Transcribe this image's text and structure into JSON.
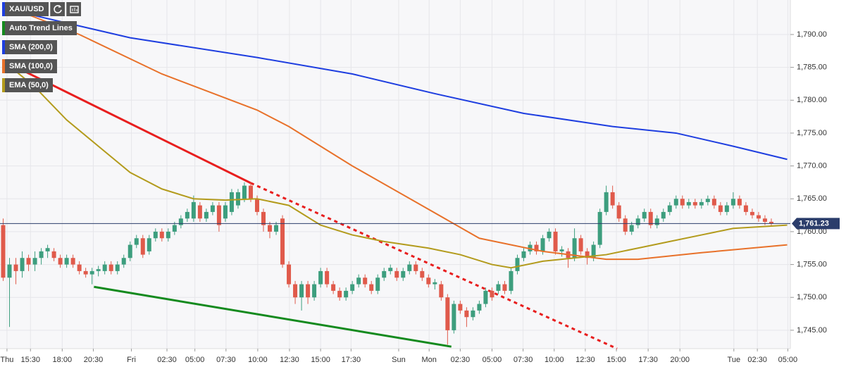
{
  "chart_data": {
    "type": "candlestick",
    "symbol": "XAU/USD",
    "ylim": [
      1742.2,
      1795.25
    ],
    "xlim": [
      -0.5,
      124
    ],
    "yticks": [
      {
        "value": 1745,
        "label": "1,745.00"
      },
      {
        "value": 1750,
        "label": "1,750.00"
      },
      {
        "value": 1755,
        "label": "1,755.00"
      },
      {
        "value": 1760,
        "label": "1,760.00"
      },
      {
        "value": 1765,
        "label": "1,765.00"
      },
      {
        "value": 1770,
        "label": "1,770.00"
      },
      {
        "value": 1775,
        "label": "1,775.00"
      },
      {
        "value": 1780,
        "label": "1,780.00"
      },
      {
        "value": 1785,
        "label": "1,785.00"
      },
      {
        "value": 1790,
        "label": "1,790.00"
      }
    ],
    "xticks": [
      {
        "value": 0.6,
        "label": "Thu"
      },
      {
        "value": 4.3,
        "label": "15:30"
      },
      {
        "value": 9.3,
        "label": "18:00"
      },
      {
        "value": 14.2,
        "label": "20:30"
      },
      {
        "value": 20.2,
        "label": "Fri"
      },
      {
        "value": 25.8,
        "label": "02:30"
      },
      {
        "value": 30.2,
        "label": "05:00"
      },
      {
        "value": 35.1,
        "label": "07:30"
      },
      {
        "value": 40.1,
        "label": "10:00"
      },
      {
        "value": 45.1,
        "label": "12:30"
      },
      {
        "value": 50,
        "label": "15:00"
      },
      {
        "value": 54.8,
        "label": "17:30"
      },
      {
        "value": 62.3,
        "label": "Sun"
      },
      {
        "value": 67.1,
        "label": "Mon"
      },
      {
        "value": 72,
        "label": "02:30"
      },
      {
        "value": 77,
        "label": "05:00"
      },
      {
        "value": 81.9,
        "label": "07:30"
      },
      {
        "value": 86.8,
        "label": "10:00"
      },
      {
        "value": 91.7,
        "label": "12:30"
      },
      {
        "value": 96.6,
        "label": "15:00"
      },
      {
        "value": 101.6,
        "label": "17:30"
      },
      {
        "value": 106.6,
        "label": "20:00"
      },
      {
        "value": 115.1,
        "label": "Tue"
      },
      {
        "value": 118.8,
        "label": "02:30"
      },
      {
        "value": 123.6,
        "label": "05:00"
      }
    ],
    "grid": true,
    "up_color": "#3d9e7e",
    "down_color": "#e05a4b",
    "candles": [
      [
        0,
        1761,
        1762,
        1752.5,
        1753
      ],
      [
        1,
        1753,
        1756,
        1745.5,
        1755
      ],
      [
        2,
        1755,
        1756,
        1752,
        1754
      ],
      [
        3,
        1754,
        1757,
        1753,
        1756
      ],
      [
        4,
        1756,
        1756.5,
        1754,
        1755
      ],
      [
        5,
        1755,
        1757,
        1754,
        1756
      ],
      [
        6,
        1756,
        1757.5,
        1755,
        1757
      ],
      [
        7,
        1757,
        1758,
        1756,
        1757.5
      ],
      [
        8,
        1757,
        1757.5,
        1755.5,
        1756
      ],
      [
        9,
        1756,
        1756.5,
        1754.5,
        1755
      ],
      [
        10,
        1755,
        1756.5,
        1754.5,
        1756
      ],
      [
        11,
        1756,
        1756.5,
        1754.5,
        1755
      ],
      [
        12,
        1755,
        1755.5,
        1753.5,
        1754
      ],
      [
        13,
        1754,
        1754.5,
        1753,
        1753.5
      ],
      [
        14,
        1753.5,
        1754.5,
        1752,
        1754
      ],
      [
        15,
        1754,
        1754.8,
        1753.2,
        1754.3
      ],
      [
        16,
        1754,
        1755.5,
        1753.5,
        1755
      ],
      [
        17,
        1755,
        1755.5,
        1753.5,
        1754
      ],
      [
        18,
        1754,
        1755.5,
        1753.5,
        1755
      ],
      [
        19,
        1755,
        1756.5,
        1754.5,
        1756
      ],
      [
        20,
        1756,
        1758.5,
        1755.5,
        1758
      ],
      [
        21,
        1758,
        1759.5,
        1757.5,
        1759
      ],
      [
        22,
        1759,
        1759.5,
        1756,
        1756.5
      ],
      [
        23,
        1757,
        1759.5,
        1756.5,
        1759
      ],
      [
        24,
        1759,
        1760.5,
        1758.5,
        1760
      ],
      [
        25,
        1760,
        1760.5,
        1758.5,
        1759
      ],
      [
        26,
        1759,
        1760.5,
        1758.5,
        1760
      ],
      [
        27,
        1760,
        1761.5,
        1759.5,
        1761
      ],
      [
        28,
        1761,
        1762.5,
        1760.5,
        1762
      ],
      [
        29,
        1762,
        1763.5,
        1761.5,
        1763
      ],
      [
        30,
        1762,
        1765.5,
        1761.5,
        1764.5
      ],
      [
        31,
        1764,
        1764.5,
        1761.5,
        1762
      ],
      [
        32,
        1762,
        1763.5,
        1761.5,
        1763
      ],
      [
        33,
        1763,
        1764.5,
        1762.5,
        1764
      ],
      [
        34,
        1764,
        1764.5,
        1760,
        1761
      ],
      [
        35,
        1762,
        1764.5,
        1761.5,
        1764
      ],
      [
        36,
        1763,
        1766.5,
        1762.5,
        1766
      ],
      [
        37,
        1764,
        1766.5,
        1763.5,
        1766
      ],
      [
        38,
        1765,
        1767.5,
        1764.5,
        1767
      ],
      [
        39,
        1767,
        1767.5,
        1764.5,
        1765
      ],
      [
        40,
        1765,
        1765.5,
        1762.5,
        1763
      ],
      [
        41,
        1763,
        1763.5,
        1760,
        1761
      ],
      [
        42,
        1761,
        1761.5,
        1759,
        1760
      ],
      [
        43,
        1760,
        1761.5,
        1759.5,
        1761
      ],
      [
        44,
        1762,
        1762.5,
        1754.5,
        1755
      ],
      [
        45,
        1755,
        1755.5,
        1751.5,
        1752
      ],
      [
        46,
        1752,
        1752.5,
        1749,
        1750
      ],
      [
        47,
        1750,
        1752.5,
        1748,
        1752
      ],
      [
        48,
        1752,
        1752.5,
        1749,
        1750
      ],
      [
        49,
        1750,
        1752.5,
        1749.5,
        1752
      ],
      [
        50,
        1752,
        1754.5,
        1751.5,
        1754
      ],
      [
        51,
        1754,
        1754.5,
        1751.5,
        1752
      ],
      [
        52,
        1752,
        1752.5,
        1750.5,
        1751
      ],
      [
        53,
        1751,
        1751.5,
        1749.5,
        1750
      ],
      [
        54,
        1750,
        1751.5,
        1749.5,
        1751
      ],
      [
        55,
        1751,
        1752.5,
        1750.5,
        1752
      ],
      [
        56,
        1752,
        1753.5,
        1751.5,
        1753
      ],
      [
        57,
        1753,
        1753.5,
        1751.5,
        1752
      ],
      [
        58,
        1752,
        1752.5,
        1750.5,
        1751
      ],
      [
        59,
        1751,
        1753.5,
        1750.5,
        1753
      ],
      [
        60,
        1753,
        1754.5,
        1752.5,
        1754
      ],
      [
        61,
        1754,
        1755,
        1753.5,
        1754.5
      ],
      [
        62,
        1754,
        1754.5,
        1752.5,
        1753
      ],
      [
        63,
        1753,
        1754.5,
        1752.5,
        1754
      ],
      [
        64,
        1754,
        1755.5,
        1753.5,
        1755
      ],
      [
        65,
        1755,
        1755.5,
        1753.5,
        1754
      ],
      [
        66,
        1754,
        1754.5,
        1752.5,
        1753
      ],
      [
        67,
        1753,
        1753.5,
        1751.5,
        1752
      ],
      [
        68,
        1752,
        1752.8,
        1751.2,
        1752.3
      ],
      [
        69,
        1752,
        1752.5,
        1749.5,
        1750
      ],
      [
        70,
        1750,
        1750.5,
        1742.8,
        1745
      ],
      [
        71,
        1745,
        1749.5,
        1744.5,
        1749
      ],
      [
        72,
        1749,
        1749.5,
        1747.5,
        1748
      ],
      [
        73,
        1748,
        1748.5,
        1745.5,
        1747
      ],
      [
        74,
        1747,
        1748.5,
        1746.5,
        1748
      ],
      [
        75,
        1748,
        1749.5,
        1747.5,
        1749
      ],
      [
        76,
        1749,
        1751.5,
        1748.5,
        1751
      ],
      [
        77,
        1751,
        1751.5,
        1749.5,
        1750
      ],
      [
        78,
        1751,
        1752.5,
        1750.5,
        1752
      ],
      [
        79,
        1752,
        1752.5,
        1750.5,
        1751
      ],
      [
        80,
        1751,
        1754.5,
        1750.5,
        1754
      ],
      [
        81,
        1754,
        1756.5,
        1753.5,
        1756
      ],
      [
        82,
        1756,
        1757.5,
        1755.5,
        1757
      ],
      [
        83,
        1757,
        1758.5,
        1756.5,
        1758
      ],
      [
        84,
        1758,
        1758.5,
        1756.5,
        1757
      ],
      [
        85,
        1757,
        1759.5,
        1756.5,
        1759
      ],
      [
        86,
        1759,
        1760.5,
        1758.5,
        1760
      ],
      [
        87,
        1760,
        1760.5,
        1756.5,
        1757
      ],
      [
        88,
        1757,
        1757.8,
        1756.2,
        1757.3
      ],
      [
        89,
        1757,
        1757.5,
        1754.5,
        1756
      ],
      [
        90,
        1756,
        1760.5,
        1755.5,
        1759
      ],
      [
        91,
        1759,
        1759.5,
        1756.5,
        1757
      ],
      [
        92,
        1757,
        1757.5,
        1755,
        1756
      ],
      [
        93,
        1756,
        1758.5,
        1755.5,
        1758
      ],
      [
        94,
        1758,
        1763.5,
        1757.5,
        1763
      ],
      [
        95,
        1763,
        1767,
        1762.5,
        1766
      ],
      [
        96,
        1766,
        1767,
        1763.5,
        1764
      ],
      [
        97,
        1764,
        1764.5,
        1761.5,
        1762
      ],
      [
        98,
        1762,
        1762.5,
        1759.5,
        1760
      ],
      [
        99,
        1760,
        1761.5,
        1759.5,
        1761
      ],
      [
        100,
        1761,
        1762.5,
        1760.5,
        1762
      ],
      [
        101,
        1762,
        1763.5,
        1761.5,
        1763
      ],
      [
        102,
        1763,
        1763.5,
        1760.5,
        1761
      ],
      [
        103,
        1761,
        1762.5,
        1760.5,
        1762
      ],
      [
        104,
        1762,
        1763.5,
        1761.5,
        1763
      ],
      [
        105,
        1763,
        1764.5,
        1762.5,
        1764
      ],
      [
        106,
        1764,
        1765.5,
        1763.5,
        1765
      ],
      [
        107,
        1765,
        1765.5,
        1763.5,
        1764
      ],
      [
        108,
        1764,
        1765,
        1763.5,
        1764.5
      ],
      [
        109,
        1764.5,
        1765,
        1763.5,
        1764
      ],
      [
        110,
        1764,
        1765,
        1763.5,
        1764.5
      ],
      [
        111,
        1764.5,
        1765.5,
        1764,
        1765
      ],
      [
        112,
        1765,
        1765.5,
        1763.5,
        1764
      ],
      [
        113,
        1764,
        1764.5,
        1762.5,
        1763
      ],
      [
        114,
        1763,
        1764.5,
        1762.5,
        1764
      ],
      [
        115,
        1764,
        1766,
        1763.5,
        1765
      ],
      [
        116,
        1765,
        1765.5,
        1763.5,
        1764
      ],
      [
        117,
        1764,
        1764.5,
        1762.5,
        1763
      ],
      [
        118,
        1763,
        1763.5,
        1762,
        1762.5
      ],
      [
        119,
        1762.5,
        1763,
        1761.5,
        1762
      ],
      [
        120,
        1762,
        1762.5,
        1761,
        1761.5
      ],
      [
        121,
        1761.5,
        1762,
        1760.8,
        1761.23
      ]
    ],
    "series": [
      {
        "name": "SMA (200,0)",
        "color": "#1e3ee0",
        "x": [
          0,
          20,
          40,
          55,
          68,
          82,
          96,
          106,
          115,
          123.5
        ],
        "values": [
          1794,
          1789.5,
          1786.5,
          1784,
          1781,
          1778,
          1776,
          1775,
          1773,
          1771
        ]
      },
      {
        "name": "SMA (100,0)",
        "color": "#e8712a",
        "x": [
          0,
          12,
          25,
          40,
          45,
          55,
          65,
          75,
          85,
          95,
          100,
          110,
          123.5
        ],
        "values": [
          1794.5,
          1790,
          1784,
          1778.5,
          1776,
          1770,
          1764.5,
          1759,
          1757,
          1755.8,
          1755.8,
          1756.8,
          1758
        ]
      },
      {
        "name": "EMA (50,0)",
        "color": "#b39b1c",
        "x": [
          0,
          5,
          10,
          15,
          20,
          25,
          30,
          35,
          40,
          45,
          50,
          55,
          60,
          67,
          72,
          77,
          80,
          85,
          90,
          95,
          100,
          105,
          110,
          115,
          123.5
        ],
        "values": [
          1786,
          1782,
          1777,
          1773,
          1769,
          1766.5,
          1765,
          1764.8,
          1765,
          1764,
          1761,
          1759.5,
          1758.5,
          1757.5,
          1756.5,
          1755,
          1754.5,
          1755.5,
          1756,
          1756.5,
          1757.5,
          1758.5,
          1759.5,
          1760.5,
          1761
        ]
      }
    ],
    "trend_lines": {
      "name": "Auto Trend Lines",
      "color": "#148a1e",
      "lines": [
        {
          "color": "#e81e1e",
          "dashed": false,
          "x": [
            0,
            39
          ],
          "values": [
            1786,
            1767.4
          ]
        },
        {
          "color": "#e81e1e",
          "dashed": true,
          "x": [
            39,
            96.7
          ],
          "values": [
            1767.4,
            1742.2
          ]
        },
        {
          "color": "#148a1e",
          "dashed": false,
          "x": [
            14.3,
            70.6
          ],
          "values": [
            1751.6,
            1742.5
          ]
        }
      ]
    },
    "last_price": {
      "value": 1761.23,
      "label": "1,761.23",
      "color": "#2b3d6b"
    }
  }
}
